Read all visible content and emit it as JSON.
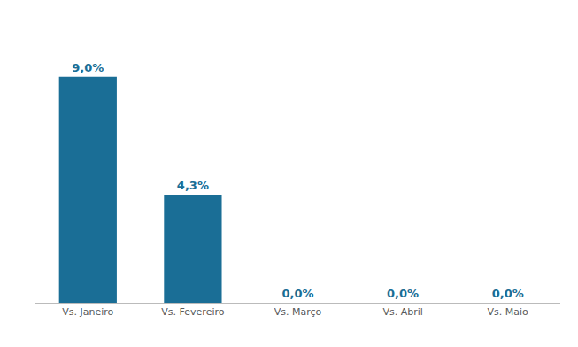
{
  "chart_data": {
    "type": "bar",
    "categories": [
      "Vs. Janeiro",
      "Vs. Fevereiro",
      "Vs. Março",
      "Vs. Abril",
      "Vs. Maio"
    ],
    "values": [
      9.0,
      4.3,
      0.0,
      0.0,
      0.0
    ],
    "value_labels": [
      "9,0%",
      "4,3%",
      "0,0%",
      "0,0%",
      "0,0%"
    ],
    "color": "#1a6e96",
    "ylim": [
      0,
      11.0
    ],
    "grid": false,
    "data_labels": true,
    "tick_labels": "x"
  }
}
